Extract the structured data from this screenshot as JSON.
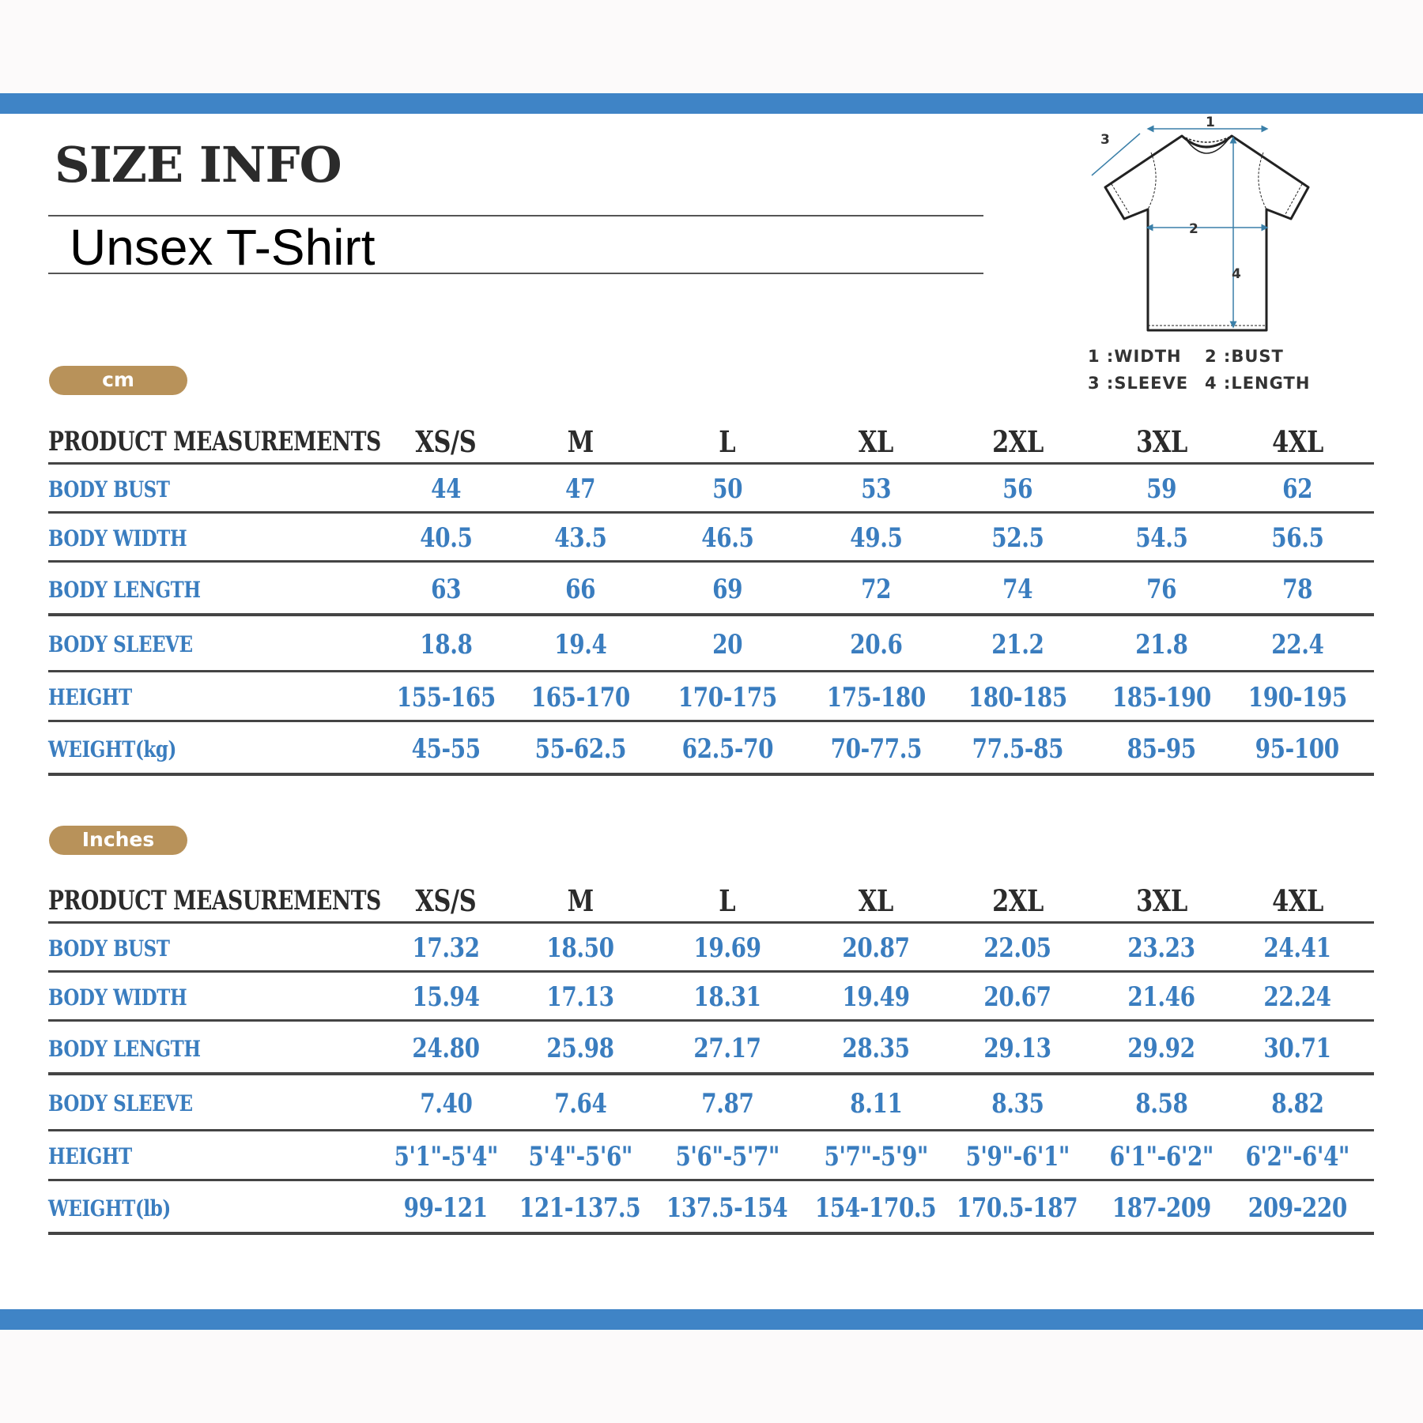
{
  "title": "SIZE INFO",
  "subtitle": "Unsex T-Shirt",
  "colors": {
    "accent_bar": "#3f84c6",
    "badge": "#b8925a",
    "value_text": "#3a7dbf",
    "header_text": "#2b2b2b"
  },
  "diagram": {
    "markers": [
      "1",
      "2",
      "3",
      "4"
    ],
    "legend": [
      "1 :WIDTH",
      "2 :BUST",
      "3 :SLEEVE",
      "4 :LENGTH"
    ]
  },
  "tables": [
    {
      "unit": "cm",
      "header": [
        "PRODUCT MEASUREMENTS",
        "XS/S",
        "M",
        "L",
        "XL",
        "2XL",
        "3XL",
        "4XL"
      ],
      "rows": [
        [
          "BODY BUST",
          "44",
          "47",
          "50",
          "53",
          "56",
          "59",
          "62"
        ],
        [
          "BODY WIDTH",
          "40.5",
          "43.5",
          "46.5",
          "49.5",
          "52.5",
          "54.5",
          "56.5"
        ],
        [
          "BODY LENGTH",
          "63",
          "66",
          "69",
          "72",
          "74",
          "76",
          "78"
        ],
        [
          "BODY SLEEVE",
          "18.8",
          "19.4",
          "20",
          "20.6",
          "21.2",
          "21.8",
          "22.4"
        ],
        [
          "HEIGHT",
          "155-165",
          "165-170",
          "170-175",
          "175-180",
          "180-185",
          "185-190",
          "190-195"
        ],
        [
          "WEIGHT(kg)",
          "45-55",
          "55-62.5",
          "62.5-70",
          "70-77.5",
          "77.5-85",
          "85-95",
          "95-100"
        ]
      ]
    },
    {
      "unit": "Inches",
      "header": [
        "PRODUCT MEASUREMENTS",
        "XS/S",
        "M",
        "L",
        "XL",
        "2XL",
        "3XL",
        "4XL"
      ],
      "rows": [
        [
          "BODY BUST",
          "17.32",
          "18.50",
          "19.69",
          "20.87",
          "22.05",
          "23.23",
          "24.41"
        ],
        [
          "BODY WIDTH",
          "15.94",
          "17.13",
          "18.31",
          "19.49",
          "20.67",
          "21.46",
          "22.24"
        ],
        [
          "BODY LENGTH",
          "24.80",
          "25.98",
          "27.17",
          "28.35",
          "29.13",
          "29.92",
          "30.71"
        ],
        [
          "BODY SLEEVE",
          "7.40",
          "7.64",
          "7.87",
          "8.11",
          "8.35",
          "8.58",
          "8.82"
        ],
        [
          "HEIGHT",
          "5'1\"-5'4\"",
          "5'4\"-5'6\"",
          "5'6\"-5'7\"",
          "5'7\"-5'9\"",
          "5'9\"-6'1\"",
          "6'1\"-6'2\"",
          "6'2\"-6'4\""
        ],
        [
          "WEIGHT(lb)",
          "99-121",
          "121-137.5",
          "137.5-154",
          "154-170.5",
          "170.5-187",
          "187-209",
          "209-220"
        ]
      ]
    }
  ]
}
